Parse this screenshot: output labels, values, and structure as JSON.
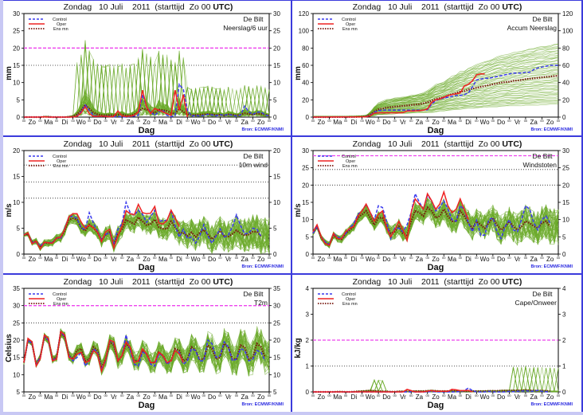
{
  "header_common": {
    "day": "Zondag",
    "date": "10 Juli",
    "year": "2011",
    "start": "(starttijd  Zo 00 UTC)"
  },
  "legend": {
    "control": "Control",
    "oper": "Oper",
    "ensmn": "Ens mn"
  },
  "location": "De Bilt",
  "xlabel": "Dag",
  "source": "Bron: ECMWF/KNMI",
  "day_ticks": [
    "Zo",
    "Ma",
    "Di",
    "Wo",
    "Do",
    "Vr",
    "Za",
    "Zo",
    "Ma",
    "Di",
    "Wo",
    "Do",
    "Vr",
    "Za",
    "Zo"
  ],
  "hour_tick_label": "00",
  "colors": {
    "control": "#3a3aee",
    "oper": "#ee2222",
    "ensmn": "#7a1a10",
    "members": "#6aaa2a",
    "threshold": "#ee44ee",
    "panel_border": "#3b3bdc",
    "source_text": "#2a2ae0"
  },
  "chart_data": [
    {
      "id": "neerslag6",
      "type": "line",
      "title": "Zondag 10 Juli 2011 (starttijd Zo 00 UTC)",
      "subtitle": "Neerslag/6 uur",
      "ylabel": "mm",
      "xlabel": "Dag",
      "ylim": [
        0,
        30
      ],
      "yticks": [
        0,
        5,
        10,
        15,
        20,
        25,
        30
      ],
      "dotted_lines": [
        15
      ],
      "threshold": 20,
      "control": [
        0,
        0,
        0,
        0,
        0,
        0.1,
        0,
        0,
        0,
        0,
        0,
        0,
        0,
        0.3,
        1.5,
        3.5,
        2,
        0.5,
        0.3,
        0.2,
        0.3,
        0.2,
        0.1,
        0.2,
        0.1,
        0,
        0.2,
        0.3,
        0.5,
        6.5,
        3,
        1.5,
        0.5,
        1.5,
        2,
        0.5,
        0.1,
        0.5,
        9.5,
        8,
        2,
        0.3,
        0.5,
        0.3,
        0.5,
        0.8,
        0.6,
        0.4,
        0.7,
        0.5,
        0.8,
        0.5,
        0.3,
        0.6,
        3.2,
        1.5,
        0.8,
        1.4,
        1.5,
        0.6,
        0.4
      ],
      "oper": [
        0,
        0,
        0,
        0,
        0,
        0.1,
        0,
        0,
        0,
        0,
        0,
        0,
        0,
        0.2,
        1.2,
        3,
        1,
        0.2,
        0.2,
        0.3,
        0.2,
        0.1,
        0.2,
        1.8,
        0.3,
        0.2,
        0.3,
        0.5,
        1.5,
        7.8,
        3,
        1,
        2.5,
        2,
        1.5,
        1,
        0.5,
        7.8,
        2,
        6.5,
        0
      ],
      "ensmn": [
        0,
        0,
        0,
        0,
        0,
        0.1,
        0.1,
        0,
        0,
        0,
        0,
        0.1,
        0.2,
        0.8,
        2,
        3.6,
        2.5,
        1.3,
        0.8,
        0.6,
        0.5,
        0.6,
        0.5,
        0.7,
        0.8,
        0.5,
        0.5,
        0.8,
        1.5,
        2.5,
        2.2,
        1.5,
        1.2,
        2.2,
        2.0,
        1.8,
        1.2,
        1.0,
        2.4,
        1.5,
        0.8,
        0.6,
        0.6,
        0.7,
        0.8,
        0.9,
        0.8,
        0.6,
        0.7,
        0.5,
        0.8,
        0.7,
        0.5,
        0.7,
        1.1,
        0.9,
        0.7,
        1.0,
        0.9,
        0.7,
        0.5
      ],
      "members_peak": 23.5
    },
    {
      "id": "accum",
      "type": "line",
      "title": "Zondag 10 Juli 2011 (starttijd Zo 00 UTC)",
      "subtitle": "Accum Neerslag",
      "ylabel": "mm",
      "xlabel": "Dag",
      "ylim": [
        0,
        120
      ],
      "yticks": [
        0,
        20,
        40,
        60,
        80,
        100,
        120
      ],
      "dotted_lines": [],
      "threshold": null,
      "control": [
        0,
        0,
        0,
        0,
        0,
        0.1,
        0.1,
        0.1,
        0.1,
        0.1,
        0.1,
        0.2,
        0.2,
        0.5,
        2,
        5.5,
        7.5,
        8,
        8,
        8,
        8,
        8,
        8,
        8,
        8,
        8,
        8,
        8,
        8.5,
        15,
        19,
        21,
        22,
        23,
        24,
        25,
        25,
        26,
        28,
        35,
        43,
        44,
        45,
        45,
        46,
        47,
        48,
        49,
        50,
        51,
        51,
        51,
        52,
        52,
        55,
        57,
        58,
        59,
        60,
        60,
        60
      ],
      "oper": [
        0,
        0,
        0,
        0,
        0,
        0.1,
        0.1,
        0.1,
        0.1,
        0.1,
        0.1,
        0.2,
        0.2,
        0.4,
        1.6,
        4.6,
        5,
        5,
        5,
        5,
        5,
        5,
        5.2,
        7,
        7,
        7.2,
        7.5,
        8,
        9.5,
        17,
        20,
        21,
        23,
        25,
        26,
        27,
        28,
        36,
        38,
        42,
        49,
        50,
        50
      ],
      "ensmn": [
        0,
        0,
        0,
        0,
        0,
        0.1,
        0.1,
        0.1,
        0.1,
        0.2,
        0.2,
        0.3,
        0.5,
        1,
        3,
        6.5,
        9,
        10,
        11,
        11.5,
        12,
        12.5,
        13,
        13.5,
        14,
        14.5,
        15,
        16,
        17,
        19,
        21,
        22,
        23,
        25,
        26.5,
        28,
        29.5,
        30,
        32,
        33,
        34,
        35,
        36,
        37,
        38,
        39,
        40,
        40.5,
        41,
        42,
        42.5,
        43,
        44,
        44.5,
        45,
        45.5,
        46,
        46.5,
        47,
        47.5,
        48
      ]
    },
    {
      "id": "wind10m",
      "type": "line",
      "title": "Zondag 10 Juli 2011 (starttijd Zo 00 UTC)",
      "subtitle": "10m wind",
      "ylabel": "m/s",
      "xlabel": "Dag",
      "ylim": [
        0,
        20
      ],
      "yticks": [
        0,
        5,
        10,
        15,
        20
      ],
      "dotted_lines": [
        10.8,
        13.9,
        17.2
      ],
      "threshold": null,
      "control": [
        3.8,
        4,
        2.3,
        2.3,
        1.6,
        2.2,
        2.3,
        2.2,
        3.2,
        3,
        5,
        7.2,
        7.3,
        6.9,
        5,
        4.8,
        8,
        6,
        4.5,
        2.7,
        3.8,
        4.1,
        2.1,
        4.8,
        5.9,
        10,
        8,
        7.5,
        8.5,
        7.7,
        6.1,
        7.2,
        8.5,
        6.3,
        6.5,
        6.5,
        8.5,
        5.5,
        3.3,
        4.8,
        3,
        3.3,
        2.1,
        3.5,
        5.7,
        3.5,
        2.1,
        3.5,
        4.9,
        3.3,
        3.7,
        5.3,
        7.6,
        5.5,
        3.9,
        4.1,
        5,
        4.8,
        3.4
      ],
      "oper": [
        3.7,
        4.1,
        2,
        2.5,
        1,
        2.3,
        2.2,
        2.1,
        3.1,
        3.3,
        4.8,
        7.2,
        7.8,
        7.8,
        6.2,
        5,
        5.6,
        5.1,
        4.3,
        2.4,
        4.3,
        4.8,
        1.2,
        3.5,
        5.4,
        8.4,
        7.8,
        7.6,
        9.6,
        8,
        7.8,
        7.9,
        9.2,
        6,
        5.8,
        6.5,
        8.5,
        7,
        5.3
      ],
      "ensmn": [
        3.7,
        3.9,
        2.2,
        2.5,
        1.3,
        2.2,
        2.1,
        2.2,
        3.1,
        3.1,
        4.6,
        6.6,
        6.9,
        6.7,
        5.1,
        4.5,
        5.7,
        5.1,
        4.2,
        2.7,
        3.8,
        4.3,
        1.9,
        3.8,
        4.8,
        6.6,
        6.2,
        5.8,
        7.1,
        6.3,
        5.6,
        5.8,
        6.7,
        5.2,
        4.9,
        4.9,
        6.3,
        5.2,
        4.1,
        4.1,
        3.5,
        4.2,
        3.3,
        4.1,
        4.7,
        3.8,
        2.9,
        3.6,
        4.5,
        3.5,
        3.4,
        3.9,
        4.6,
        4,
        3.6,
        3.8,
        4.3,
        4.3,
        3.5
      ]
    },
    {
      "id": "windstoten",
      "type": "line",
      "title": "Zondag 10 Juli 2011 (starttijd Zo 00 UTC)",
      "subtitle": "Windstoten",
      "ylabel": "m/s",
      "xlabel": "Dag",
      "ylim": [
        0,
        30
      ],
      "yticks": [
        0,
        5,
        10,
        15,
        20,
        25,
        30
      ],
      "dotted_lines": [
        20,
        24.5
      ],
      "threshold": 28.5,
      "control": [
        6,
        8,
        5,
        3.5,
        2.8,
        6,
        5,
        4.5,
        6,
        7.5,
        9,
        11.5,
        12.5,
        14.5,
        12,
        10,
        14,
        13.5,
        9.5,
        4.5,
        7.5,
        7.5,
        6.5,
        8.5,
        12,
        17.5,
        15,
        13,
        17,
        15.5,
        12.5,
        13.5,
        15.5,
        13,
        10,
        9.5,
        14,
        13,
        9,
        6.5,
        9.8,
        5.5,
        5.5,
        10,
        10.5,
        6.5,
        4.5,
        8,
        10,
        7,
        6.5,
        10,
        14,
        13,
        9,
        7,
        10,
        11,
        9
      ],
      "oper": [
        6.5,
        8.5,
        5,
        3,
        2.5,
        6,
        4.5,
        4.5,
        6.5,
        7.5,
        8,
        11,
        12.5,
        14.5,
        12,
        9.5,
        11.5,
        12.5,
        7.5,
        5,
        7,
        9.5,
        7,
        4,
        12,
        16,
        14.5,
        13,
        17.5,
        15.5,
        13,
        14.5,
        18,
        14,
        12,
        13,
        16,
        13,
        10
      ],
      "ensmn": [
        6,
        8,
        4.8,
        3.3,
        2.7,
        5.5,
        4.5,
        4.3,
        6,
        7,
        8,
        10.5,
        11.5,
        12.5,
        10.5,
        8.5,
        10.5,
        10.5,
        8,
        6,
        6.5,
        8,
        6,
        5.5,
        9.5,
        12.5,
        12,
        11,
        13.5,
        12.5,
        10.5,
        11,
        13,
        11,
        9.5,
        9.5,
        12.5,
        11,
        9,
        7.5,
        9.5,
        8.5,
        7.5,
        9,
        10.5,
        8.5,
        7,
        8,
        9.5,
        8,
        7,
        8,
        9.5,
        9,
        8,
        7.5,
        9,
        9.5,
        8
      ]
    },
    {
      "id": "t2m",
      "type": "line",
      "title": "Zondag 10 Juli 2011 (starttijd Zo 00 UTC)",
      "subtitle": "T2m",
      "ylabel": "Celsius",
      "xlabel": "Dag",
      "ylim": [
        5,
        35
      ],
      "yticks": [
        5,
        10,
        15,
        20,
        25,
        30,
        35
      ],
      "dotted_lines": [
        25
      ],
      "threshold": 30,
      "control": [
        13.5,
        20,
        19,
        13,
        15,
        21,
        20,
        14,
        15,
        22.5,
        21,
        15.5,
        14,
        15,
        16.5,
        12.5,
        14,
        17.5,
        16.5,
        11.5,
        14,
        20,
        19,
        14,
        15.5,
        21.5,
        17,
        13,
        12.5,
        16.5,
        16,
        13,
        12.5,
        16,
        15.5,
        13,
        14,
        17,
        16.5,
        13,
        14,
        17.5,
        17,
        14,
        14,
        20,
        19,
        15,
        15.5,
        19.5,
        18,
        14,
        14.5,
        17.5,
        17,
        14,
        14.5,
        17,
        16.5,
        14
      ],
      "oper": [
        13.5,
        20.5,
        19.5,
        12.5,
        14.5,
        21.5,
        20.5,
        14,
        14.5,
        22.5,
        21.5,
        15,
        14.5,
        16,
        16.5,
        13.5,
        14,
        17,
        16,
        11,
        14.5,
        20,
        19.5,
        14,
        15.5,
        19.5,
        18,
        13.5,
        14,
        17.5,
        16,
        13.5,
        13.5,
        16.5,
        15.5,
        13.5,
        14,
        17,
        16,
        13.5
      ],
      "ensmn": [
        13.5,
        20,
        19,
        13,
        15,
        21,
        20,
        14.5,
        15,
        22,
        21,
        15.5,
        14.5,
        17,
        17.5,
        14,
        14.5,
        18,
        17,
        12,
        14.5,
        19.5,
        18.5,
        14,
        15.5,
        19,
        17.5,
        14,
        14,
        17,
        16,
        13.5,
        13.5,
        16.5,
        15.5,
        13.5,
        14,
        17.5,
        17,
        14,
        14.5,
        18,
        17,
        14.5,
        14.5,
        18.5,
        17.5,
        14.5,
        15,
        19,
        18,
        14.5,
        14.5,
        18.5,
        18,
        14.5,
        15,
        19,
        18,
        15
      ]
    },
    {
      "id": "cape",
      "type": "line",
      "title": "Zondag 10 Juli 2011 (starttijd Zo 00 UTC)",
      "subtitle": "Cape/Onweer",
      "ylabel": "kJ/kg",
      "xlabel": "Dag",
      "ylim": [
        0,
        4
      ],
      "yticks": [
        0,
        1,
        2,
        3,
        4
      ],
      "dotted_lines": [
        1
      ],
      "threshold": 2,
      "control": [
        0,
        0,
        0,
        0,
        0,
        0,
        0,
        0,
        0,
        0,
        0,
        0,
        0,
        0,
        0,
        0,
        0,
        0,
        0,
        0,
        0,
        0,
        0,
        0,
        0,
        0,
        0,
        0,
        0,
        0.02,
        0,
        0,
        0,
        0,
        0,
        0,
        0.02,
        0.05,
        0.15,
        0.05,
        0,
        0,
        0,
        0.02,
        0,
        0,
        0,
        0,
        0.02,
        0.01,
        0.02,
        0.03,
        0.05,
        0.02,
        0.03,
        0.06,
        0.02,
        0.01,
        0
      ],
      "oper": [
        0,
        0,
        0,
        0,
        0,
        0,
        0,
        0,
        0,
        0,
        0,
        0,
        0,
        0,
        0,
        0,
        0,
        0,
        0,
        0,
        0,
        0,
        0,
        0.1,
        0.05,
        0,
        0,
        0,
        0.03,
        0.05,
        0.02,
        0.02,
        0.02,
        0.02,
        0.1,
        0.08,
        0.05,
        0.05,
        0.06,
        0
      ],
      "ensmn": [
        0,
        0,
        0,
        0,
        0,
        0,
        0.01,
        0.01,
        0,
        0,
        0.01,
        0.02,
        0.03,
        0.04,
        0.05,
        0.04,
        0.03,
        0.02,
        0.02,
        0.01,
        0.01,
        0.02,
        0.02,
        0.02,
        0.02,
        0.03,
        0.03,
        0.03,
        0.04,
        0.05,
        0.04,
        0.03,
        0.03,
        0.03,
        0.04,
        0.04,
        0.03,
        0.03,
        0.04,
        0.03,
        0.03,
        0.03,
        0.03,
        0.04,
        0.04,
        0.04,
        0.05,
        0.05,
        0.05,
        0.06,
        0.06,
        0.06,
        0.07,
        0.06,
        0.05,
        0.05,
        0.05,
        0.04,
        0.03
      ]
    }
  ]
}
